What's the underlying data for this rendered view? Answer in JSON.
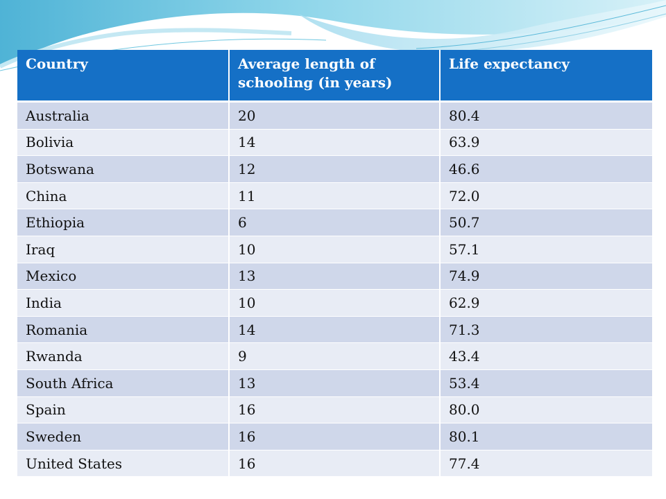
{
  "table": {
    "headers": [
      "Country",
      "Average length of schooling (in years)",
      "Life expectancy"
    ],
    "rows": [
      [
        "Australia",
        "20",
        "80.4"
      ],
      [
        "Bolivia",
        "14",
        "63.9"
      ],
      [
        "Botswana",
        "12",
        "46.6"
      ],
      [
        "China",
        "11",
        "72.0"
      ],
      [
        "Ethiopia",
        "6",
        "50.7"
      ],
      [
        "Iraq",
        "10",
        "57.1"
      ],
      [
        "Mexico",
        "13",
        "74.9"
      ],
      [
        "India",
        "10",
        "62.9"
      ],
      [
        "Romania",
        "14",
        "71.3"
      ],
      [
        "Rwanda",
        "9",
        "43.4"
      ],
      [
        "South Africa",
        "13",
        "53.4"
      ],
      [
        "Spain",
        "16",
        "80.0"
      ],
      [
        "Sweden",
        "16",
        "80.1"
      ],
      [
        "United States",
        "16",
        "77.4"
      ]
    ]
  },
  "colors": {
    "header_bg": "#1570c6",
    "row_odd": "#cfd7ea",
    "row_even": "#e8ecf5",
    "wave_accent": "#6fc7e0"
  }
}
